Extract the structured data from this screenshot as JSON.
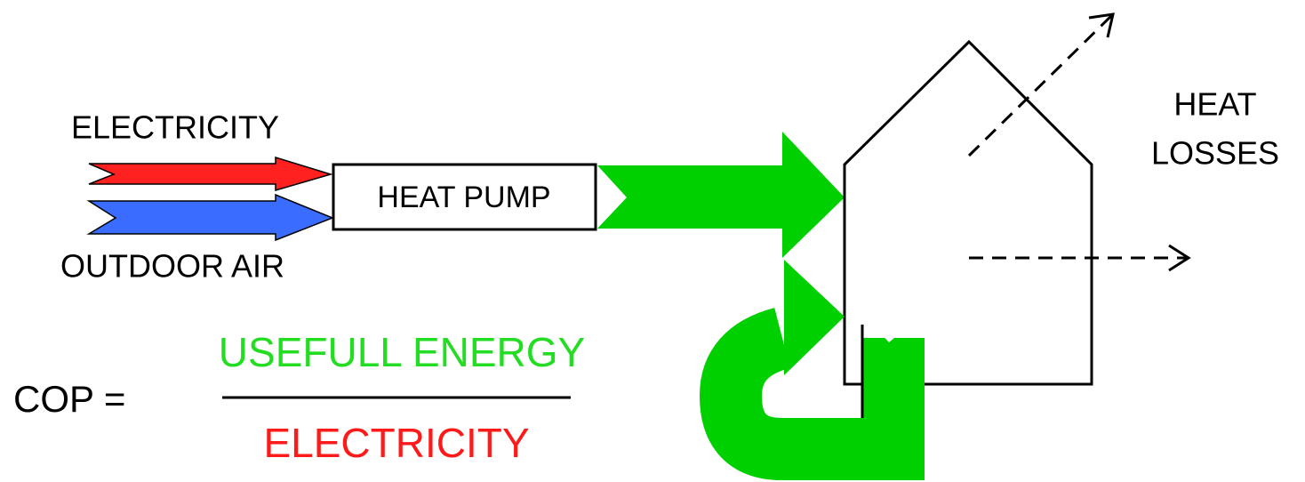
{
  "inputs": [
    {
      "label": "ELECTRICITY"
    },
    {
      "label": "OUTDOOR AIR"
    }
  ],
  "device": {
    "label": "HEAT PUMP"
  },
  "losses": {
    "label": [
      "HEAT",
      "LOSSES"
    ]
  },
  "formula": {
    "lhs": "COP =",
    "numerator": "USEFULL ENERGY",
    "denominator": "ELECTRICITY"
  }
}
